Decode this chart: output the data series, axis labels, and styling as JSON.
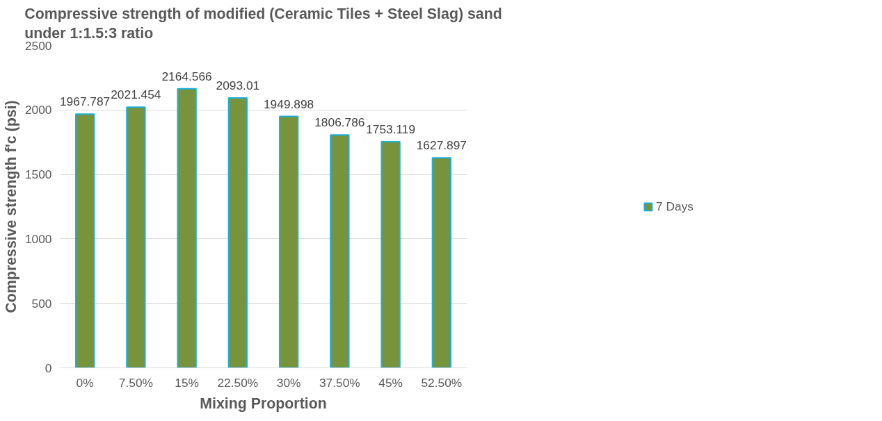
{
  "chart_data": {
    "type": "bar",
    "title": "Compressive strength of modified (Ceramic Tiles + Steel Slag) sand\nunder 1:1.5:3 ratio",
    "xlabel": "Mixing Proportion",
    "ylabel": "Compressive strength f'c (psi)",
    "categories": [
      "0%",
      "7.50%",
      "15%",
      "22.50%",
      "30%",
      "37.50%",
      "45%",
      "52.50%"
    ],
    "series": [
      {
        "name": "7 Days",
        "color": "#77933c",
        "values": [
          1967.787,
          2021.454,
          2164.566,
          2093.01,
          1949.898,
          1806.786,
          1753.119,
          1627.897
        ]
      }
    ],
    "ylim": [
      0,
      2500
    ],
    "yticks": [
      0,
      500,
      1000,
      1500,
      2000,
      2500
    ],
    "grid": "y",
    "legend": "right",
    "data_labels": true
  }
}
